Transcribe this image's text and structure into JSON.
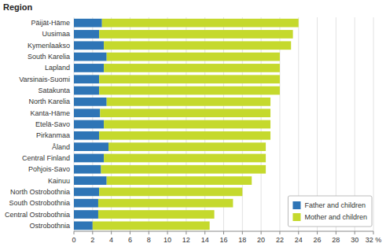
{
  "chart_data": {
    "type": "bar",
    "orientation": "horizontal",
    "stacked": true,
    "y_label": "Region",
    "categories": [
      "Päijät-Häme",
      "Uusimaa",
      "Kymenlaakso",
      "South Karelia",
      "Lapland",
      "Varsinais-Suomi",
      "Satakunta",
      "North Karelia",
      "Kanta-Häme",
      "Etelä-Savo",
      "Pirkanmaa",
      "Åland",
      "Central Finland",
      "Pohjois-Savo",
      "Kainuu",
      "North Ostrobothnia",
      "South Ostrobothnia",
      "Central Ostrobothnia",
      "Ostrobothnia"
    ],
    "series": [
      {
        "name": "Father and children",
        "color": "#2e75b6",
        "values": [
          3.0,
          2.7,
          3.2,
          3.5,
          3.2,
          2.7,
          2.7,
          3.5,
          2.8,
          3.2,
          2.7,
          3.7,
          3.2,
          2.9,
          3.5,
          2.7,
          2.6,
          2.6,
          2.0
        ]
      },
      {
        "name": "Mother and children",
        "color": "#c5d92d",
        "values": [
          21.0,
          20.7,
          20.0,
          18.5,
          18.8,
          19.3,
          19.3,
          17.5,
          18.2,
          17.8,
          18.3,
          16.8,
          17.3,
          17.6,
          15.5,
          15.3,
          14.4,
          12.4,
          12.5
        ]
      }
    ],
    "xlim": [
      0,
      32
    ],
    "xticks": [
      0,
      2,
      4,
      6,
      8,
      10,
      12,
      14,
      16,
      18,
      20,
      22,
      24,
      26,
      28,
      30,
      {
        "value": 32,
        "label": "32 %"
      }
    ],
    "grid": true,
    "legend": "lower right"
  }
}
